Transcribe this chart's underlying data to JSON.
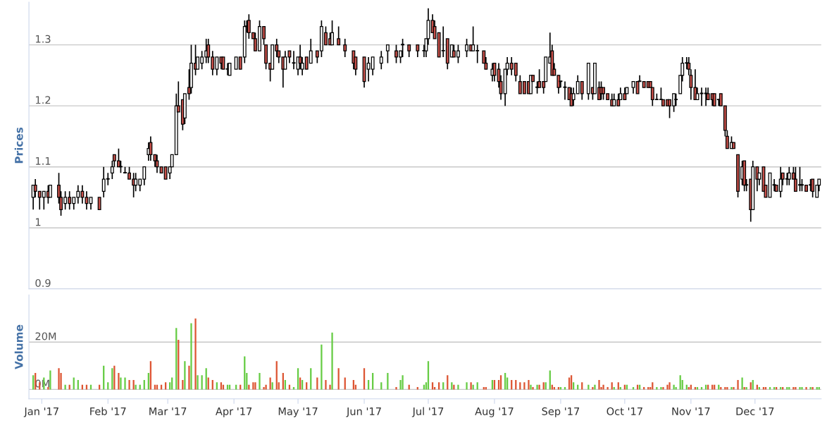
{
  "chart_data": [
    {
      "type": "candlestick",
      "ylabel": "Prices",
      "ylim": [
        0.9,
        1.37
      ],
      "yticks": [
        0.9,
        1,
        1.1,
        1.2,
        1.3
      ],
      "xlim": [
        "2016-12-26",
        "2018-01-01"
      ],
      "grid": "y",
      "tick_labels": "y",
      "color": "#000000",
      "colors": [
        "#ffffff",
        "#c9504a",
        "#c9504a",
        "#ffffff",
        "#c9504a",
        "#ffffff",
        "#c9504a",
        "#c9504a",
        "#ffffff",
        "#c9504a",
        "#ffffff",
        "#ffffff",
        "#c9504a",
        "#c9504a",
        "#ffffff",
        "#c9504a",
        "#ffffff",
        "#ffffff",
        "#ffffff",
        "#c9504a",
        "#c9504a",
        "#ffffff",
        "#ffffff",
        "#c9504a",
        "#c9504a",
        "#ffffff",
        "#ffffff",
        "#ffffff",
        "#ffffff",
        "#c9504a",
        "#c9504a",
        "#c9504a",
        "#c9504a",
        "#c9504a",
        "#ffffff",
        "#ffffff",
        "#ffffff",
        "#c9504a",
        "#c9504a",
        "#ffffff",
        "#c9504a",
        "#ffffff",
        "#c9504a",
        "#ffffff",
        "#ffffff",
        "#ffffff",
        "#c9504a",
        "#c9504a",
        "#ffffff",
        "#c9504a",
        "#c9504a",
        "#ffffff",
        "#ffffff",
        "#ffffff",
        "#c9504a",
        "#ffffff",
        "#ffffff",
        "#c9504a",
        "#c9504a",
        "#c9504a",
        "#ffffff",
        "#c9504a",
        "#c9504a",
        "#c9504a",
        "#ffffff",
        "#c9504a",
        "#c9504a",
        "#c9504a",
        "#ffffff",
        "#c9504a",
        "#ffffff",
        "#ffffff",
        "#c9504a",
        "#ffffff",
        "#c9504a",
        "#ffffff",
        "#c9504a",
        "#ffffff",
        "#c9504a",
        "#c9504a",
        "#ffffff",
        "#c9504a",
        "#c9504a",
        "#c9504a",
        "#c9504a",
        "#c9504a",
        "#ffffff",
        "#ffffff",
        "#ffffff",
        "#ffffff",
        "#c9504a",
        "#ffffff",
        "#ffffff",
        "#c9504a",
        "#c9504a",
        "#ffffff",
        "#ffffff",
        "#ffffff",
        "#c9504a",
        "#c9504a",
        "#c9504a",
        "#ffffff",
        "#c9504a",
        "#ffffff",
        "#c9504a",
        "#ffffff",
        "#ffffff",
        "#c9504a",
        "#ffffff",
        "#ffffff",
        "#c9504a",
        "#c9504a",
        "#ffffff",
        "#c9504a",
        "#c9504a",
        "#c9504a",
        "#ffffff",
        "#ffffff",
        "#c9504a",
        "#c9504a",
        "#c9504a",
        "#c9504a",
        "#c9504a",
        "#ffffff",
        "#c9504a",
        "#ffffff",
        "#c9504a",
        "#c9504a",
        "#ffffff",
        "#ffffff",
        "#c9504a",
        "#c9504a",
        "#c9504a",
        "#ffffff",
        "#ffffff",
        "#c9504a",
        "#c9504a",
        "#ffffff",
        "#ffffff",
        "#c9504a",
        "#ffffff",
        "#c9504a",
        "#ffffff",
        "#c9504a",
        "#c9504a",
        "#c9504a",
        "#c9504a",
        "#c9504a",
        "#ffffff",
        "#c9504a",
        "#ffffff",
        "#c9504a",
        "#ffffff",
        "#ffffff",
        "#c9504a",
        "#ffffff",
        "#c9504a",
        "#c9504a",
        "#c9504a",
        "#c9504a",
        "#ffffff",
        "#ffffff",
        "#c9504a",
        "#c9504a",
        "#c9504a",
        "#ffffff",
        "#ffffff",
        "#ffffff",
        "#ffffff",
        "#ffffff",
        "#c9504a",
        "#c9504a",
        "#c9504a",
        "#ffffff",
        "#ffffff",
        "#ffffff",
        "#c9504a",
        "#c9504a",
        "#c9504a",
        "#ffffff",
        "#c9504a",
        "#c9504a",
        "#c9504a",
        "#ffffff",
        "#c9504a",
        "#c9504a",
        "#ffffff",
        "#c9504a",
        "#ffffff",
        "#c9504a",
        "#ffffff",
        "#c9504a",
        "#ffffff",
        "#c9504a",
        "#c9504a",
        "#ffffff",
        "#ffffff",
        "#c9504a",
        "#ffffff",
        "#c9504a",
        "#ffffff",
        "#ffffff",
        "#c9504a",
        "#c9504a",
        "#ffffff",
        "#ffffff",
        "#c9504a",
        "#ffffff",
        "#c9504a",
        "#ffffff",
        "#ffffff"
      ],
      "x": [
        "2016-12-28",
        "2016-12-29",
        "2016-12-31",
        "2017-01-02",
        "2017-01-04",
        "2017-01-05",
        "2017-01-09",
        "2017-01-10",
        "2017-01-12",
        "2017-01-14",
        "2017-01-16",
        "2017-01-18",
        "2017-01-20",
        "2017-01-22",
        "2017-01-24",
        "2017-01-28",
        "2017-01-30",
        "2017-02-01",
        "2017-02-03",
        "2017-02-04",
        "2017-02-06",
        "2017-02-07",
        "2017-02-09",
        "2017-02-11",
        "2017-02-13",
        "2017-02-14",
        "2017-02-16",
        "2017-02-18",
        "2017-02-20",
        "2017-02-21",
        "2017-02-23",
        "2017-02-24",
        "2017-02-26",
        "2017-02-28",
        "2017-03-02",
        "2017-03-03",
        "2017-03-05",
        "2017-03-06",
        "2017-03-08",
        "2017-03-09",
        "2017-03-11",
        "2017-03-12",
        "2017-03-14",
        "2017-03-15",
        "2017-03-17",
        "2017-03-19",
        "2017-03-20",
        "2017-03-22",
        "2017-03-24",
        "2017-03-26",
        "2017-03-27",
        "2017-03-29",
        "2017-03-30",
        "2017-04-02",
        "2017-04-04",
        "2017-04-06",
        "2017-04-07",
        "2017-04-08",
        "2017-04-10",
        "2017-04-11",
        "2017-04-13",
        "2017-04-15",
        "2017-04-16",
        "2017-04-18",
        "2017-04-19",
        "2017-04-21",
        "2017-04-22",
        "2017-04-24",
        "2017-04-25",
        "2017-04-27",
        "2017-04-29",
        "2017-05-01",
        "2017-05-02",
        "2017-05-03",
        "2017-05-05",
        "2017-05-07",
        "2017-05-10",
        "2017-05-12",
        "2017-05-14",
        "2017-05-16",
        "2017-05-17",
        "2017-05-20",
        "2017-05-23",
        "2017-05-27",
        "2017-05-28",
        "2017-06-01",
        "2017-06-03",
        "2017-06-05",
        "2017-06-09",
        "2017-06-12",
        "2017-06-16",
        "2017-06-18",
        "2017-06-19",
        "2017-06-22",
        "2017-06-26",
        "2017-06-29",
        "2017-06-30",
        "2017-07-01",
        "2017-07-03",
        "2017-07-04",
        "2017-07-06",
        "2017-07-08",
        "2017-07-10",
        "2017-07-12",
        "2017-07-13",
        "2017-07-15",
        "2017-07-19",
        "2017-07-21",
        "2017-07-22",
        "2017-07-24",
        "2017-07-27",
        "2017-07-28",
        "2017-07-31",
        "2017-08-01",
        "2017-08-03",
        "2017-08-04",
        "2017-08-06",
        "2017-08-07",
        "2017-08-09",
        "2017-08-11",
        "2017-08-13",
        "2017-08-15",
        "2017-08-17",
        "2017-08-18",
        "2017-08-19",
        "2017-08-21",
        "2017-08-22",
        "2017-08-24",
        "2017-08-25",
        "2017-08-27",
        "2017-08-28",
        "2017-08-29",
        "2017-08-31",
        "2017-09-01",
        "2017-09-03",
        "2017-09-05",
        "2017-09-06",
        "2017-09-07",
        "2017-09-09",
        "2017-09-11",
        "2017-09-14",
        "2017-09-16",
        "2017-09-17",
        "2017-09-19",
        "2017-09-20",
        "2017-09-21",
        "2017-09-23",
        "2017-09-25",
        "2017-09-26",
        "2017-09-28",
        "2017-09-29",
        "2017-10-01",
        "2017-10-02",
        "2017-10-05",
        "2017-10-07",
        "2017-10-08",
        "2017-10-10",
        "2017-10-12",
        "2017-10-13",
        "2017-10-14",
        "2017-10-16",
        "2017-10-18",
        "2017-10-19",
        "2017-10-21",
        "2017-10-22",
        "2017-10-24",
        "2017-10-25",
        "2017-10-27",
        "2017-10-28",
        "2017-10-30",
        "2017-10-31",
        "2017-11-01",
        "2017-11-03",
        "2017-11-04",
        "2017-11-06",
        "2017-11-08",
        "2017-11-09",
        "2017-11-11",
        "2017-11-12",
        "2017-11-14",
        "2017-11-15",
        "2017-11-17",
        "2017-11-18",
        "2017-11-20",
        "2017-11-21",
        "2017-11-23",
        "2017-11-25",
        "2017-11-26",
        "2017-11-27",
        "2017-11-29",
        "2017-11-30",
        "2017-12-02",
        "2017-12-03",
        "2017-12-05",
        "2017-12-06",
        "2017-12-08",
        "2017-12-10",
        "2017-12-11",
        "2017-12-13",
        "2017-12-14",
        "2017-12-16",
        "2017-12-17",
        "2017-12-19",
        "2017-12-20",
        "2017-12-22",
        "2017-12-23",
        "2017-12-25",
        "2017-12-27",
        "2017-12-28",
        "2017-12-30",
        "2017-12-31"
      ],
      "ohlc": [
        [
          1.05,
          1.07,
          1.03,
          1.07
        ],
        [
          1.07,
          1.08,
          1.05,
          1.06
        ],
        [
          1.06,
          1.06,
          1.03,
          1.05
        ],
        [
          1.05,
          1.06,
          1.03,
          1.06
        ],
        [
          1.06,
          1.07,
          1.04,
          1.05
        ],
        [
          1.05,
          1.07,
          1.05,
          1.07
        ],
        [
          1.07,
          1.09,
          1.04,
          1.05
        ],
        [
          1.05,
          1.06,
          1.02,
          1.03
        ],
        [
          1.04,
          1.06,
          1.03,
          1.05
        ],
        [
          1.05,
          1.06,
          1.03,
          1.04
        ],
        [
          1.04,
          1.05,
          1.03,
          1.05
        ],
        [
          1.05,
          1.07,
          1.04,
          1.06
        ],
        [
          1.06,
          1.07,
          1.04,
          1.05
        ],
        [
          1.05,
          1.06,
          1.03,
          1.04
        ],
        [
          1.04,
          1.05,
          1.03,
          1.05
        ],
        [
          1.05,
          1.05,
          1.03,
          1.03
        ],
        [
          1.06,
          1.1,
          1.05,
          1.08
        ],
        [
          1.08,
          1.09,
          1.07,
          1.08
        ],
        [
          1.09,
          1.11,
          1.08,
          1.1
        ],
        [
          1.12,
          1.12,
          1.1,
          1.11
        ],
        [
          1.11,
          1.13,
          1.1,
          1.1
        ],
        [
          1.1,
          1.11,
          1.09,
          1.1
        ],
        [
          1.09,
          1.1,
          1.09,
          1.09
        ],
        [
          1.09,
          1.1,
          1.08,
          1.08
        ],
        [
          1.08,
          1.09,
          1.05,
          1.07
        ],
        [
          1.07,
          1.09,
          1.06,
          1.08
        ],
        [
          1.07,
          1.08,
          1.06,
          1.08
        ],
        [
          1.08,
          1.1,
          1.07,
          1.1
        ],
        [
          1.12,
          1.14,
          1.11,
          1.13
        ],
        [
          1.14,
          1.15,
          1.11,
          1.12
        ],
        [
          1.12,
          1.12,
          1.1,
          1.11
        ],
        [
          1.11,
          1.12,
          1.09,
          1.1
        ],
        [
          1.1,
          1.1,
          1.09,
          1.09
        ],
        [
          1.1,
          1.1,
          1.08,
          1.08
        ],
        [
          1.09,
          1.1,
          1.08,
          1.1
        ],
        [
          1.1,
          1.12,
          1.1,
          1.12
        ],
        [
          1.12,
          1.22,
          1.12,
          1.2
        ],
        [
          1.2,
          1.24,
          1.19,
          1.19
        ],
        [
          1.21,
          1.21,
          1.16,
          1.17
        ],
        [
          1.18,
          1.22,
          1.17,
          1.22
        ],
        [
          1.23,
          1.26,
          1.21,
          1.22
        ],
        [
          1.23,
          1.3,
          1.22,
          1.27
        ],
        [
          1.27,
          1.3,
          1.25,
          1.26
        ],
        [
          1.26,
          1.28,
          1.26,
          1.28
        ],
        [
          1.27,
          1.29,
          1.26,
          1.28
        ],
        [
          1.28,
          1.31,
          1.27,
          1.29
        ],
        [
          1.3,
          1.31,
          1.27,
          1.28
        ],
        [
          1.28,
          1.29,
          1.25,
          1.26
        ],
        [
          1.26,
          1.28,
          1.25,
          1.28
        ],
        [
          1.28,
          1.28,
          1.26,
          1.27
        ],
        [
          1.28,
          1.28,
          1.26,
          1.26
        ],
        [
          1.26,
          1.27,
          1.25,
          1.26
        ],
        [
          1.25,
          1.27,
          1.25,
          1.27
        ],
        [
          1.26,
          1.28,
          1.26,
          1.28
        ],
        [
          1.28,
          1.28,
          1.26,
          1.26
        ],
        [
          1.28,
          1.34,
          1.27,
          1.33
        ],
        [
          1.33,
          1.34,
          1.32,
          1.33
        ],
        [
          1.34,
          1.35,
          1.31,
          1.32
        ],
        [
          1.32,
          1.32,
          1.31,
          1.31
        ],
        [
          1.31,
          1.32,
          1.29,
          1.29
        ],
        [
          1.29,
          1.34,
          1.29,
          1.33
        ],
        [
          1.33,
          1.33,
          1.3,
          1.31
        ],
        [
          1.3,
          1.3,
          1.26,
          1.27
        ],
        [
          1.27,
          1.27,
          1.24,
          1.26
        ],
        [
          1.26,
          1.3,
          1.26,
          1.3
        ],
        [
          1.3,
          1.31,
          1.28,
          1.29
        ],
        [
          1.29,
          1.29,
          1.27,
          1.28
        ],
        [
          1.28,
          1.28,
          1.23,
          1.26
        ],
        [
          1.26,
          1.29,
          1.26,
          1.28
        ],
        [
          1.29,
          1.29,
          1.27,
          1.28
        ],
        [
          1.27,
          1.29,
          1.26,
          1.27
        ],
        [
          1.26,
          1.28,
          1.25,
          1.28
        ],
        [
          1.28,
          1.3,
          1.26,
          1.27
        ],
        [
          1.26,
          1.28,
          1.25,
          1.27
        ],
        [
          1.28,
          1.28,
          1.26,
          1.26
        ],
        [
          1.27,
          1.31,
          1.27,
          1.29
        ],
        [
          1.29,
          1.29,
          1.27,
          1.28
        ],
        [
          1.29,
          1.34,
          1.28,
          1.33
        ],
        [
          1.32,
          1.33,
          1.3,
          1.3
        ],
        [
          1.31,
          1.32,
          1.3,
          1.3
        ],
        [
          1.3,
          1.34,
          1.3,
          1.32
        ],
        [
          1.31,
          1.33,
          1.3,
          1.3
        ],
        [
          1.3,
          1.31,
          1.28,
          1.29
        ],
        [
          1.29,
          1.29,
          1.26,
          1.27
        ],
        [
          1.28,
          1.28,
          1.25,
          1.26
        ],
        [
          1.28,
          1.28,
          1.23,
          1.24
        ],
        [
          1.26,
          1.28,
          1.24,
          1.27
        ],
        [
          1.26,
          1.28,
          1.25,
          1.28
        ],
        [
          1.27,
          1.29,
          1.26,
          1.28
        ],
        [
          1.29,
          1.3,
          1.27,
          1.3
        ],
        [
          1.29,
          1.3,
          1.27,
          1.28
        ],
        [
          1.28,
          1.29,
          1.27,
          1.29
        ],
        [
          1.3,
          1.31,
          1.28,
          1.3
        ],
        [
          1.3,
          1.3,
          1.28,
          1.29
        ],
        [
          1.3,
          1.3,
          1.28,
          1.29
        ],
        [
          1.29,
          1.3,
          1.28,
          1.29
        ],
        [
          1.29,
          1.31,
          1.28,
          1.31
        ],
        [
          1.31,
          1.36,
          1.3,
          1.34
        ],
        [
          1.34,
          1.35,
          1.32,
          1.32
        ],
        [
          1.33,
          1.34,
          1.31,
          1.31
        ],
        [
          1.32,
          1.32,
          1.28,
          1.28
        ],
        [
          1.29,
          1.33,
          1.28,
          1.29
        ],
        [
          1.31,
          1.31,
          1.26,
          1.27
        ],
        [
          1.28,
          1.3,
          1.28,
          1.3
        ],
        [
          1.29,
          1.3,
          1.28,
          1.28
        ],
        [
          1.28,
          1.3,
          1.27,
          1.29
        ],
        [
          1.29,
          1.31,
          1.28,
          1.3
        ],
        [
          1.3,
          1.3,
          1.29,
          1.29
        ],
        [
          1.29,
          1.33,
          1.29,
          1.3
        ],
        [
          1.29,
          1.3,
          1.27,
          1.29
        ],
        [
          1.29,
          1.29,
          1.27,
          1.27
        ],
        [
          1.27,
          1.28,
          1.26,
          1.26
        ],
        [
          1.25,
          1.27,
          1.24,
          1.26
        ],
        [
          1.27,
          1.27,
          1.24,
          1.25
        ],
        [
          1.26,
          1.27,
          1.23,
          1.24
        ],
        [
          1.24,
          1.25,
          1.21,
          1.22
        ],
        [
          1.22,
          1.26,
          1.2,
          1.26
        ],
        [
          1.26,
          1.28,
          1.25,
          1.27
        ],
        [
          1.27,
          1.28,
          1.25,
          1.26
        ],
        [
          1.27,
          1.27,
          1.24,
          1.25
        ],
        [
          1.24,
          1.25,
          1.22,
          1.22
        ],
        [
          1.24,
          1.24,
          1.22,
          1.22
        ],
        [
          1.24,
          1.24,
          1.22,
          1.22
        ],
        [
          1.22,
          1.25,
          1.22,
          1.25
        ],
        [
          1.25,
          1.25,
          1.24,
          1.24
        ],
        [
          1.23,
          1.24,
          1.22,
          1.23
        ],
        [
          1.24,
          1.26,
          1.23,
          1.23
        ],
        [
          1.24,
          1.24,
          1.22,
          1.23
        ],
        [
          1.24,
          1.28,
          1.24,
          1.28
        ],
        [
          1.27,
          1.32,
          1.27,
          1.28
        ],
        [
          1.29,
          1.3,
          1.25,
          1.25
        ],
        [
          1.26,
          1.27,
          1.25,
          1.25
        ],
        [
          1.25,
          1.25,
          1.22,
          1.23
        ],
        [
          1.24,
          1.24,
          1.23,
          1.24
        ],
        [
          1.23,
          1.24,
          1.21,
          1.23
        ],
        [
          1.23,
          1.23,
          1.21,
          1.21
        ],
        [
          1.22,
          1.23,
          1.2,
          1.2
        ],
        [
          1.21,
          1.23,
          1.2,
          1.22
        ],
        [
          1.22,
          1.25,
          1.22,
          1.24
        ],
        [
          1.24,
          1.24,
          1.21,
          1.22
        ],
        [
          1.22,
          1.27,
          1.21,
          1.27
        ],
        [
          1.23,
          1.23,
          1.21,
          1.22
        ],
        [
          1.22,
          1.27,
          1.22,
          1.27
        ],
        [
          1.23,
          1.24,
          1.21,
          1.21
        ],
        [
          1.23,
          1.24,
          1.21,
          1.22
        ],
        [
          1.23,
          1.23,
          1.21,
          1.22
        ],
        [
          1.22,
          1.22,
          1.21,
          1.21
        ],
        [
          1.21,
          1.22,
          1.2,
          1.2
        ],
        [
          1.2,
          1.22,
          1.2,
          1.21
        ],
        [
          1.21,
          1.22,
          1.2,
          1.2
        ],
        [
          1.21,
          1.23,
          1.21,
          1.22
        ],
        [
          1.22,
          1.23,
          1.21,
          1.21
        ],
        [
          1.22,
          1.23,
          1.22,
          1.23
        ],
        [
          1.23,
          1.24,
          1.22,
          1.24
        ],
        [
          1.24,
          1.24,
          1.22,
          1.22
        ],
        [
          1.24,
          1.25,
          1.24,
          1.24
        ],
        [
          1.24,
          1.24,
          1.23,
          1.23
        ],
        [
          1.24,
          1.24,
          1.23,
          1.23
        ],
        [
          1.24,
          1.24,
          1.23,
          1.23
        ],
        [
          1.23,
          1.23,
          1.2,
          1.21
        ],
        [
          1.21,
          1.22,
          1.21,
          1.21
        ],
        [
          1.21,
          1.23,
          1.21,
          1.21
        ],
        [
          1.21,
          1.21,
          1.2,
          1.2
        ],
        [
          1.21,
          1.21,
          1.2,
          1.2
        ],
        [
          1.21,
          1.21,
          1.18,
          1.2
        ],
        [
          1.2,
          1.22,
          1.19,
          1.22
        ],
        [
          1.21,
          1.22,
          1.2,
          1.21
        ],
        [
          1.22,
          1.25,
          1.22,
          1.25
        ],
        [
          1.25,
          1.28,
          1.24,
          1.27
        ],
        [
          1.27,
          1.28,
          1.26,
          1.27
        ],
        [
          1.27,
          1.28,
          1.25,
          1.26
        ],
        [
          1.25,
          1.26,
          1.21,
          1.23
        ],
        [
          1.23,
          1.26,
          1.21,
          1.21
        ],
        [
          1.21,
          1.23,
          1.21,
          1.22
        ],
        [
          1.22,
          1.23,
          1.2,
          1.22
        ],
        [
          1.22,
          1.23,
          1.2,
          1.22
        ],
        [
          1.22,
          1.23,
          1.21,
          1.21
        ],
        [
          1.22,
          1.22,
          1.2,
          1.21
        ],
        [
          1.22,
          1.22,
          1.2,
          1.2
        ],
        [
          1.21,
          1.21,
          1.2,
          1.21
        ],
        [
          1.22,
          1.22,
          1.2,
          1.2
        ],
        [
          1.2,
          1.2,
          1.15,
          1.16
        ],
        [
          1.15,
          1.16,
          1.13,
          1.13
        ],
        [
          1.13,
          1.15,
          1.13,
          1.14
        ],
        [
          1.14,
          1.14,
          1.13,
          1.13
        ],
        [
          1.12,
          1.12,
          1.05,
          1.06
        ],
        [
          1.08,
          1.11,
          1.07,
          1.1
        ],
        [
          1.11,
          1.11,
          1.06,
          1.07
        ],
        [
          1.07,
          1.08,
          1.06,
          1.07
        ],
        [
          1.08,
          1.08,
          1.01,
          1.03
        ],
        [
          1.03,
          1.11,
          1.03,
          1.1
        ],
        [
          1.1,
          1.1,
          1.06,
          1.08
        ],
        [
          1.08,
          1.09,
          1.07,
          1.09
        ],
        [
          1.1,
          1.1,
          1.06,
          1.06
        ],
        [
          1.07,
          1.07,
          1.05,
          1.05
        ],
        [
          1.05,
          1.09,
          1.05,
          1.09
        ],
        [
          1.07,
          1.08,
          1.06,
          1.07
        ],
        [
          1.07,
          1.07,
          1.06,
          1.06
        ],
        [
          1.06,
          1.1,
          1.05,
          1.08
        ],
        [
          1.09,
          1.09,
          1.07,
          1.08
        ],
        [
          1.08,
          1.09,
          1.07,
          1.08
        ],
        [
          1.08,
          1.1,
          1.07,
          1.09
        ],
        [
          1.09,
          1.1,
          1.08,
          1.08
        ],
        [
          1.08,
          1.1,
          1.06,
          1.06
        ],
        [
          1.07,
          1.1,
          1.06,
          1.07
        ],
        [
          1.07,
          1.08,
          1.06,
          1.07
        ],
        [
          1.07,
          1.07,
          1.06,
          1.06
        ],
        [
          1.07,
          1.08,
          1.06,
          1.07
        ],
        [
          1.08,
          1.08,
          1.05,
          1.06
        ],
        [
          1.05,
          1.07,
          1.05,
          1.07
        ],
        [
          1.07,
          1.08,
          1.06,
          1.08
        ]
      ]
    },
    {
      "type": "bar",
      "ylabel": "Volume",
      "ylim": [
        -4,
        40
      ],
      "yticks": [
        {
          "value": 0,
          "label": "0M"
        },
        {
          "value": 20,
          "label": "20M"
        }
      ],
      "xlim": [
        "2016-12-26",
        "2018-01-01"
      ],
      "xticks": [
        {
          "value": "2017-01-01",
          "label": "Jan '17"
        },
        {
          "value": "2017-02-01",
          "label": "Feb '17"
        },
        {
          "value": "2017-03-01",
          "label": "Mar '17"
        },
        {
          "value": "2017-04-01",
          "label": "Apr '17"
        },
        {
          "value": "2017-05-01",
          "label": "May '17"
        },
        {
          "value": "2017-06-01",
          "label": "Jun '17"
        },
        {
          "value": "2017-07-01",
          "label": "Jul '17"
        },
        {
          "value": "2017-08-01",
          "label": "Aug '17"
        },
        {
          "value": "2017-09-01",
          "label": "Sep '17"
        },
        {
          "value": "2017-10-01",
          "label": "Oct '17"
        },
        {
          "value": "2017-11-01",
          "label": "Nov '17"
        },
        {
          "value": "2017-12-01",
          "label": "Dec '17"
        }
      ],
      "grid": "y",
      "x": [
        "2016-12-28",
        "2016-12-29",
        "2016-12-31",
        "2017-01-02",
        "2017-01-04",
        "2017-01-05",
        "2017-01-09",
        "2017-01-10",
        "2017-01-12",
        "2017-01-14",
        "2017-01-16",
        "2017-01-18",
        "2017-01-20",
        "2017-01-22",
        "2017-01-24",
        "2017-01-28",
        "2017-01-30",
        "2017-02-01",
        "2017-02-03",
        "2017-02-04",
        "2017-02-06",
        "2017-02-07",
        "2017-02-09",
        "2017-02-11",
        "2017-02-13",
        "2017-02-14",
        "2017-02-16",
        "2017-02-18",
        "2017-02-20",
        "2017-02-21",
        "2017-02-23",
        "2017-02-24",
        "2017-02-26",
        "2017-02-28",
        "2017-03-02",
        "2017-03-03",
        "2017-03-05",
        "2017-03-06",
        "2017-03-08",
        "2017-03-09",
        "2017-03-11",
        "2017-03-12",
        "2017-03-14",
        "2017-03-15",
        "2017-03-17",
        "2017-03-19",
        "2017-03-20",
        "2017-03-22",
        "2017-03-24",
        "2017-03-26",
        "2017-03-27",
        "2017-03-29",
        "2017-03-30",
        "2017-04-02",
        "2017-04-04",
        "2017-04-06",
        "2017-04-07",
        "2017-04-08",
        "2017-04-10",
        "2017-04-11",
        "2017-04-13",
        "2017-04-15",
        "2017-04-16",
        "2017-04-18",
        "2017-04-19",
        "2017-04-21",
        "2017-04-22",
        "2017-04-24",
        "2017-04-25",
        "2017-04-27",
        "2017-04-29",
        "2017-05-01",
        "2017-05-02",
        "2017-05-03",
        "2017-05-05",
        "2017-05-07",
        "2017-05-10",
        "2017-05-12",
        "2017-05-14",
        "2017-05-16",
        "2017-05-17",
        "2017-05-20",
        "2017-05-23",
        "2017-05-27",
        "2017-05-28",
        "2017-06-01",
        "2017-06-03",
        "2017-06-05",
        "2017-06-09",
        "2017-06-12",
        "2017-06-16",
        "2017-06-18",
        "2017-06-19",
        "2017-06-22",
        "2017-06-26",
        "2017-06-29",
        "2017-06-30",
        "2017-07-01",
        "2017-07-03",
        "2017-07-04",
        "2017-07-06",
        "2017-07-08",
        "2017-07-10",
        "2017-07-12",
        "2017-07-13",
        "2017-07-15",
        "2017-07-19",
        "2017-07-21",
        "2017-07-22",
        "2017-07-24",
        "2017-07-27",
        "2017-07-28",
        "2017-07-31",
        "2017-08-01",
        "2017-08-03",
        "2017-08-04",
        "2017-08-06",
        "2017-08-07",
        "2017-08-09",
        "2017-08-11",
        "2017-08-13",
        "2017-08-15",
        "2017-08-17",
        "2017-08-18",
        "2017-08-19",
        "2017-08-21",
        "2017-08-22",
        "2017-08-24",
        "2017-08-25",
        "2017-08-27",
        "2017-08-28",
        "2017-08-29",
        "2017-08-31",
        "2017-09-01",
        "2017-09-03",
        "2017-09-05",
        "2017-09-06",
        "2017-09-07",
        "2017-09-09",
        "2017-09-11",
        "2017-09-14",
        "2017-09-16",
        "2017-09-17",
        "2017-09-19",
        "2017-09-20",
        "2017-09-21",
        "2017-09-23",
        "2017-09-25",
        "2017-09-26",
        "2017-09-28",
        "2017-09-29",
        "2017-10-01",
        "2017-10-02",
        "2017-10-05",
        "2017-10-07",
        "2017-10-08",
        "2017-10-10",
        "2017-10-12",
        "2017-10-13",
        "2017-10-14",
        "2017-10-16",
        "2017-10-18",
        "2017-10-19",
        "2017-10-21",
        "2017-10-22",
        "2017-10-24",
        "2017-10-25",
        "2017-10-27",
        "2017-10-28",
        "2017-10-30",
        "2017-10-31",
        "2017-11-01",
        "2017-11-03",
        "2017-11-04",
        "2017-11-06",
        "2017-11-08",
        "2017-11-09",
        "2017-11-11",
        "2017-11-12",
        "2017-11-14",
        "2017-11-15",
        "2017-11-17",
        "2017-11-18",
        "2017-11-20",
        "2017-11-21",
        "2017-11-23",
        "2017-11-25",
        "2017-11-26",
        "2017-11-27",
        "2017-11-29",
        "2017-11-30",
        "2017-12-02",
        "2017-12-03",
        "2017-12-05",
        "2017-12-06",
        "2017-12-08",
        "2017-12-10",
        "2017-12-11",
        "2017-12-13",
        "2017-12-14",
        "2017-12-16",
        "2017-12-17",
        "2017-12-19",
        "2017-12-20",
        "2017-12-22",
        "2017-12-23",
        "2017-12-25",
        "2017-12-27",
        "2017-12-28",
        "2017-12-30",
        "2017-12-31"
      ],
      "values": [
        6,
        7,
        3,
        5,
        1,
        8,
        9,
        7,
        2,
        2,
        5,
        4,
        2,
        2,
        2,
        2,
        10,
        3,
        9,
        10,
        7,
        5,
        5,
        4,
        4,
        2,
        2,
        4,
        7,
        12,
        2,
        2,
        2,
        3,
        3,
        5,
        26,
        21,
        4,
        12,
        10,
        28,
        30,
        6,
        6,
        9,
        5,
        4,
        3,
        3,
        2,
        2,
        2,
        2,
        2,
        14,
        7,
        2,
        3,
        3,
        7,
        1,
        2,
        5,
        3,
        12,
        3,
        7,
        4,
        2,
        1,
        9,
        5,
        4,
        3,
        9,
        5,
        19,
        4,
        2,
        24,
        9,
        5,
        4,
        2,
        9,
        4,
        7,
        3,
        7,
        1,
        4,
        6,
        2,
        1,
        2,
        3,
        12,
        3,
        1,
        3,
        3,
        6,
        3,
        2,
        2,
        3,
        3,
        2,
        3,
        1,
        1,
        4,
        4,
        4,
        6,
        7,
        5,
        4,
        4,
        3,
        3,
        4,
        2,
        1,
        2,
        2,
        3,
        3,
        8,
        2,
        1,
        1,
        1,
        1,
        5,
        6,
        3,
        2,
        3,
        2,
        1,
        2,
        4,
        1,
        2,
        1,
        3,
        1,
        3,
        1,
        2,
        2,
        1,
        2,
        2,
        1,
        1,
        1,
        3,
        1,
        1,
        1,
        2,
        3,
        2,
        1,
        6,
        4,
        2,
        1,
        2,
        1,
        1,
        1,
        2,
        2,
        2,
        2,
        2,
        1,
        1,
        1,
        1,
        1,
        4,
        5,
        1,
        1,
        3,
        4,
        2,
        1,
        1,
        1,
        1,
        1,
        1,
        1,
        1,
        1,
        1,
        1,
        1,
        1,
        1,
        1,
        1,
        1,
        1,
        1
      ],
      "colors": [
        "#66cc44",
        "#dd5533",
        "#dd5533",
        "#66cc44",
        "#dd5533",
        "#66cc44",
        "#dd5533",
        "#dd5533",
        "#66cc44",
        "#dd5533",
        "#66cc44",
        "#66cc44",
        "#dd5533",
        "#dd5533",
        "#66cc44",
        "#dd5533",
        "#66cc44",
        "#66cc44",
        "#66cc44",
        "#dd5533",
        "#dd5533",
        "#66cc44",
        "#66cc44",
        "#dd5533",
        "#dd5533",
        "#66cc44",
        "#66cc44",
        "#66cc44",
        "#66cc44",
        "#dd5533",
        "#dd5533",
        "#dd5533",
        "#dd5533",
        "#dd5533",
        "#66cc44",
        "#66cc44",
        "#66cc44",
        "#dd5533",
        "#dd5533",
        "#66cc44",
        "#dd5533",
        "#66cc44",
        "#dd5533",
        "#66cc44",
        "#66cc44",
        "#66cc44",
        "#dd5533",
        "#dd5533",
        "#66cc44",
        "#dd5533",
        "#dd5533",
        "#66cc44",
        "#66cc44",
        "#66cc44",
        "#dd5533",
        "#66cc44",
        "#66cc44",
        "#dd5533",
        "#dd5533",
        "#dd5533",
        "#66cc44",
        "#dd5533",
        "#dd5533",
        "#dd5533",
        "#66cc44",
        "#dd5533",
        "#dd5533",
        "#dd5533",
        "#66cc44",
        "#dd5533",
        "#66cc44",
        "#66cc44",
        "#dd5533",
        "#66cc44",
        "#dd5533",
        "#66cc44",
        "#dd5533",
        "#66cc44",
        "#dd5533",
        "#dd5533",
        "#66cc44",
        "#dd5533",
        "#dd5533",
        "#dd5533",
        "#dd5533",
        "#dd5533",
        "#66cc44",
        "#66cc44",
        "#66cc44",
        "#66cc44",
        "#dd5533",
        "#66cc44",
        "#66cc44",
        "#dd5533",
        "#dd5533",
        "#66cc44",
        "#66cc44",
        "#66cc44",
        "#dd5533",
        "#dd5533",
        "#dd5533",
        "#66cc44",
        "#dd5533",
        "#66cc44",
        "#dd5533",
        "#66cc44",
        "#66cc44",
        "#dd5533",
        "#66cc44",
        "#66cc44",
        "#dd5533",
        "#dd5533",
        "#66cc44",
        "#dd5533",
        "#dd5533",
        "#dd5533",
        "#66cc44",
        "#66cc44",
        "#dd5533",
        "#dd5533",
        "#dd5533",
        "#dd5533",
        "#dd5533",
        "#66cc44",
        "#dd5533",
        "#66cc44",
        "#dd5533",
        "#dd5533",
        "#66cc44",
        "#66cc44",
        "#dd5533",
        "#dd5533",
        "#dd5533",
        "#66cc44",
        "#66cc44",
        "#dd5533",
        "#dd5533",
        "#66cc44",
        "#66cc44",
        "#dd5533",
        "#66cc44",
        "#dd5533",
        "#66cc44",
        "#dd5533",
        "#dd5533",
        "#dd5533",
        "#dd5533",
        "#dd5533",
        "#66cc44",
        "#dd5533",
        "#66cc44",
        "#dd5533",
        "#66cc44",
        "#66cc44",
        "#dd5533",
        "#66cc44",
        "#dd5533",
        "#dd5533",
        "#dd5533",
        "#dd5533",
        "#66cc44",
        "#66cc44",
        "#dd5533",
        "#dd5533",
        "#dd5533",
        "#66cc44",
        "#66cc44",
        "#66cc44",
        "#66cc44",
        "#66cc44",
        "#dd5533",
        "#dd5533",
        "#dd5533",
        "#66cc44",
        "#66cc44",
        "#66cc44",
        "#dd5533",
        "#dd5533",
        "#dd5533",
        "#66cc44",
        "#dd5533",
        "#dd5533",
        "#dd5533",
        "#66cc44",
        "#dd5533",
        "#dd5533",
        "#66cc44",
        "#dd5533",
        "#66cc44",
        "#dd5533",
        "#66cc44",
        "#dd5533",
        "#66cc44",
        "#dd5533",
        "#dd5533",
        "#66cc44",
        "#66cc44",
        "#dd5533",
        "#66cc44",
        "#dd5533",
        "#66cc44",
        "#66cc44",
        "#dd5533",
        "#dd5533",
        "#66cc44",
        "#66cc44",
        "#dd5533",
        "#66cc44",
        "#dd5533",
        "#66cc44",
        "#66cc44"
      ]
    }
  ]
}
